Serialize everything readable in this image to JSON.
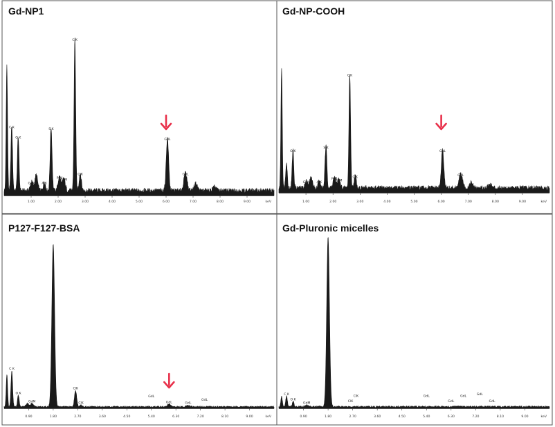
{
  "chart_data": [
    {
      "type": "line",
      "title": "Gd-NP1",
      "xunit": "keV",
      "xlim": [
        0,
        10
      ],
      "ylim": [
        0,
        100
      ],
      "xticks": [
        "1.00",
        "2.00",
        "3.00",
        "4.00",
        "5.00",
        "6.00",
        "7.00",
        "8.00",
        "9.00"
      ],
      "baseline": 3,
      "peaks": [
        {
          "x": 0.1,
          "y": 72,
          "w": 0.025
        },
        {
          "x": 0.28,
          "y": 37,
          "w": 0.03,
          "label": "C K"
        },
        {
          "x": 0.52,
          "y": 31,
          "w": 0.03,
          "label": "O K"
        },
        {
          "x": 1.02,
          "y": 5,
          "w": 0.05,
          "label": "GdM"
        },
        {
          "x": 1.19,
          "y": 9,
          "w": 0.05
        },
        {
          "x": 1.49,
          "y": 5,
          "w": 0.04,
          "label": "AlK"
        },
        {
          "x": 1.74,
          "y": 36,
          "w": 0.035,
          "label": "SiK"
        },
        {
          "x": 2.05,
          "y": 8,
          "w": 0.05,
          "label": "PtM"
        },
        {
          "x": 2.21,
          "y": 7,
          "w": 0.05,
          "label": "AuM"
        },
        {
          "x": 2.62,
          "y": 87,
          "w": 0.03,
          "label": "ClK"
        },
        {
          "x": 2.82,
          "y": 10,
          "w": 0.04,
          "label": "ClK"
        },
        {
          "x": 6.05,
          "y": 30,
          "w": 0.045,
          "label": "GdL"
        },
        {
          "x": 6.72,
          "y": 10,
          "w": 0.06,
          "label": "GdL"
        },
        {
          "x": 7.1,
          "y": 4,
          "w": 0.06
        },
        {
          "x": 7.8,
          "y": 2,
          "w": 0.06,
          "label": "GdL"
        }
      ],
      "annotations": [
        {
          "type": "arrow",
          "x": 6.0,
          "color": "#e8304a"
        }
      ]
    },
    {
      "type": "line",
      "title": "Gd-NP-COOH",
      "xunit": "keV",
      "xlim": [
        0,
        10
      ],
      "ylim": [
        0,
        100
      ],
      "xticks": [
        "1.00",
        "2.00",
        "3.00",
        "4.00",
        "5.00",
        "6.00",
        "7.00",
        "8.00",
        "9.00"
      ],
      "baseline": 3,
      "peaks": [
        {
          "x": 0.1,
          "y": 70,
          "w": 0.025
        },
        {
          "x": 0.28,
          "y": 15,
          "w": 0.03
        },
        {
          "x": 0.52,
          "y": 22,
          "w": 0.03,
          "label": "O K"
        },
        {
          "x": 1.02,
          "y": 4,
          "w": 0.05,
          "label": "GdM"
        },
        {
          "x": 1.19,
          "y": 6,
          "w": 0.05
        },
        {
          "x": 1.49,
          "y": 4,
          "w": 0.04,
          "label": "AlK"
        },
        {
          "x": 1.74,
          "y": 24,
          "w": 0.035,
          "label": "SiK"
        },
        {
          "x": 2.05,
          "y": 6,
          "w": 0.05,
          "label": "PtM"
        },
        {
          "x": 2.21,
          "y": 5,
          "w": 0.05,
          "label": "AuM"
        },
        {
          "x": 2.62,
          "y": 66,
          "w": 0.03,
          "label": "ClK"
        },
        {
          "x": 2.82,
          "y": 7,
          "w": 0.04,
          "label": "ClK"
        },
        {
          "x": 6.05,
          "y": 22,
          "w": 0.045,
          "label": "GdL"
        },
        {
          "x": 6.72,
          "y": 8,
          "w": 0.06,
          "label": "GdL"
        },
        {
          "x": 7.1,
          "y": 3,
          "w": 0.06
        },
        {
          "x": 7.8,
          "y": 2,
          "w": 0.06,
          "label": "GdL"
        }
      ],
      "annotations": [
        {
          "type": "arrow",
          "x": 6.0,
          "color": "#e8304a"
        }
      ]
    },
    {
      "type": "line",
      "title": "P127-F127-BSA",
      "xunit": "keV",
      "xlim": [
        0,
        9.9
      ],
      "ylim": [
        0,
        100
      ],
      "xticks": [
        "0.90",
        "1.80",
        "2.70",
        "3.60",
        "4.50",
        "5.40",
        "6.30",
        "7.20",
        "8.10",
        "9.00"
      ],
      "baseline": 1,
      "peaks": [
        {
          "x": 0.1,
          "y": 20,
          "w": 0.025
        },
        {
          "x": 0.28,
          "y": 22,
          "w": 0.03,
          "label": "C K"
        },
        {
          "x": 0.52,
          "y": 7,
          "w": 0.03,
          "label": "O K"
        },
        {
          "x": 0.85,
          "y": 2,
          "w": 0.05
        },
        {
          "x": 1.02,
          "y": 2,
          "w": 0.05,
          "label": "GdM"
        },
        {
          "x": 1.8,
          "y": 100,
          "w": 0.05
        },
        {
          "x": 2.62,
          "y": 10,
          "w": 0.04,
          "label": "ClK"
        },
        {
          "x": 2.82,
          "y": 1,
          "w": 0.04,
          "label": "ClK"
        },
        {
          "x": 6.05,
          "y": 1.5,
          "w": 0.06,
          "label": "GdL"
        },
        {
          "x": 6.75,
          "y": 1,
          "w": 0.06,
          "label": "GdL"
        }
      ],
      "extra_labels": [
        {
          "x": 5.4,
          "y": 5,
          "label": "GdL"
        },
        {
          "x": 7.35,
          "y": 3,
          "label": "GdL"
        }
      ],
      "annotations": [
        {
          "type": "arrow",
          "x": 6.05,
          "color": "#e8304a"
        }
      ]
    },
    {
      "type": "line",
      "title": "Gd-Pluronic micelles",
      "xunit": "keV",
      "xlim": [
        0,
        9.9
      ],
      "ylim": [
        0,
        100
      ],
      "xticks": [
        "0.90",
        "1.80",
        "2.70",
        "3.60",
        "4.50",
        "5.40",
        "6.30",
        "7.20",
        "8.10",
        "9.00"
      ],
      "baseline": 1,
      "peaks": [
        {
          "x": 0.1,
          "y": 6,
          "w": 0.025
        },
        {
          "x": 0.28,
          "y": 6,
          "w": 0.03,
          "label": "C K"
        },
        {
          "x": 0.52,
          "y": 3,
          "w": 0.03,
          "label": "O K"
        },
        {
          "x": 1.02,
          "y": 1,
          "w": 0.05,
          "label": "GdM"
        },
        {
          "x": 1.8,
          "y": 97,
          "w": 0.05
        }
      ],
      "extra_labels": [
        {
          "x": 2.62,
          "y": 2,
          "label": "ClK"
        },
        {
          "x": 2.82,
          "y": 5,
          "label": "ClK"
        },
        {
          "x": 5.4,
          "y": 5,
          "label": "GdL"
        },
        {
          "x": 6.3,
          "y": 2,
          "label": "GdL"
        },
        {
          "x": 6.75,
          "y": 5,
          "label": "GdL"
        },
        {
          "x": 7.35,
          "y": 6,
          "label": "GdL"
        },
        {
          "x": 7.8,
          "y": 2,
          "label": "GdL"
        }
      ],
      "annotations": []
    }
  ],
  "colors": {
    "spectrum": "#1a1a1a",
    "arrow": "#e8304a",
    "frame": "#555555",
    "background": "#ffffff"
  }
}
